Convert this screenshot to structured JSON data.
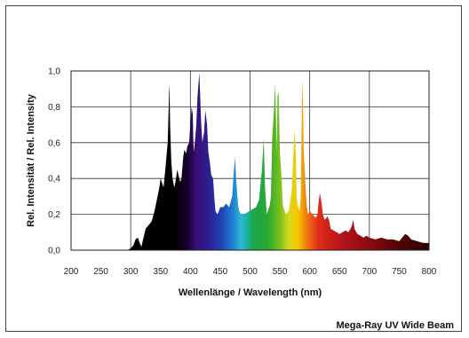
{
  "chart_data": {
    "type": "area",
    "xlabel": "Wellenlänge / Wavelength (nm)",
    "ylabel": "Rel. Intensität / Rel. Intensity",
    "caption": "Mega-Ray UV Wide Beam",
    "xlim": [
      200,
      800
    ],
    "ylim": [
      0,
      1.0
    ],
    "x_ticks": [
      "200",
      "250",
      "300",
      "350",
      "400",
      "450",
      "500",
      "550",
      "600",
      "650",
      "700",
      "750",
      "800"
    ],
    "y_ticks": [
      "0,0",
      "0,2",
      "0,4",
      "0,6",
      "0,8",
      "1,0"
    ],
    "grid": true,
    "series": [
      {
        "x": [
          200,
          295,
          300,
          305,
          308,
          312,
          315,
          318,
          320,
          325,
          330,
          335,
          340,
          345,
          348,
          350,
          352,
          355,
          358,
          362,
          364,
          365,
          366,
          368,
          370,
          373,
          375,
          378,
          380,
          383,
          385,
          388,
          390,
          393,
          395,
          398,
          400,
          402,
          404,
          405,
          406,
          408,
          410,
          412,
          415,
          418,
          420,
          423,
          425,
          428,
          430,
          433,
          435,
          438,
          440,
          442,
          445,
          448,
          450,
          455,
          460,
          465,
          470,
          473,
          475,
          477,
          480,
          482,
          485,
          490,
          495,
          500,
          505,
          510,
          515,
          520,
          523,
          525,
          528,
          530,
          533,
          535,
          537,
          540,
          542,
          545,
          546,
          548,
          550,
          553,
          555,
          560,
          565,
          570,
          573,
          575,
          577,
          578,
          580,
          583,
          585,
          587,
          588,
          590,
          593,
          595,
          597,
          600,
          605,
          610,
          613,
          615,
          617,
          620,
          622,
          625,
          628,
          630,
          633,
          635,
          640,
          645,
          650,
          655,
          660,
          665,
          670,
          673,
          675,
          678,
          680,
          685,
          690,
          695,
          700,
          710,
          720,
          730,
          740,
          750,
          755,
          760,
          765,
          770,
          780,
          790,
          800
        ],
        "y": [
          0.0,
          0.0,
          0.01,
          0.03,
          0.06,
          0.07,
          0.04,
          0.02,
          0.05,
          0.12,
          0.14,
          0.16,
          0.22,
          0.3,
          0.35,
          0.4,
          0.38,
          0.35,
          0.45,
          0.6,
          0.85,
          0.93,
          0.7,
          0.5,
          0.4,
          0.35,
          0.38,
          0.45,
          0.42,
          0.38,
          0.4,
          0.52,
          0.56,
          0.54,
          0.58,
          0.6,
          0.7,
          0.8,
          0.76,
          0.6,
          0.55,
          0.62,
          0.7,
          0.86,
          0.99,
          0.72,
          0.6,
          0.66,
          0.78,
          0.7,
          0.55,
          0.48,
          0.42,
          0.4,
          0.3,
          0.22,
          0.2,
          0.22,
          0.24,
          0.24,
          0.26,
          0.24,
          0.3,
          0.45,
          0.52,
          0.38,
          0.25,
          0.22,
          0.2,
          0.2,
          0.21,
          0.22,
          0.23,
          0.24,
          0.28,
          0.45,
          0.62,
          0.36,
          0.2,
          0.22,
          0.25,
          0.3,
          0.62,
          0.78,
          0.93,
          0.55,
          0.86,
          0.88,
          0.55,
          0.4,
          0.25,
          0.2,
          0.22,
          0.34,
          0.56,
          0.68,
          0.5,
          0.3,
          0.25,
          0.22,
          0.3,
          0.82,
          0.96,
          0.56,
          0.35,
          0.25,
          0.2,
          0.22,
          0.2,
          0.18,
          0.2,
          0.27,
          0.32,
          0.26,
          0.2,
          0.17,
          0.18,
          0.19,
          0.16,
          0.12,
          0.11,
          0.1,
          0.09,
          0.1,
          0.11,
          0.1,
          0.13,
          0.17,
          0.12,
          0.1,
          0.09,
          0.08,
          0.07,
          0.08,
          0.07,
          0.06,
          0.07,
          0.06,
          0.06,
          0.05,
          0.07,
          0.09,
          0.08,
          0.06,
          0.05,
          0.04,
          0.04
        ]
      }
    ]
  }
}
